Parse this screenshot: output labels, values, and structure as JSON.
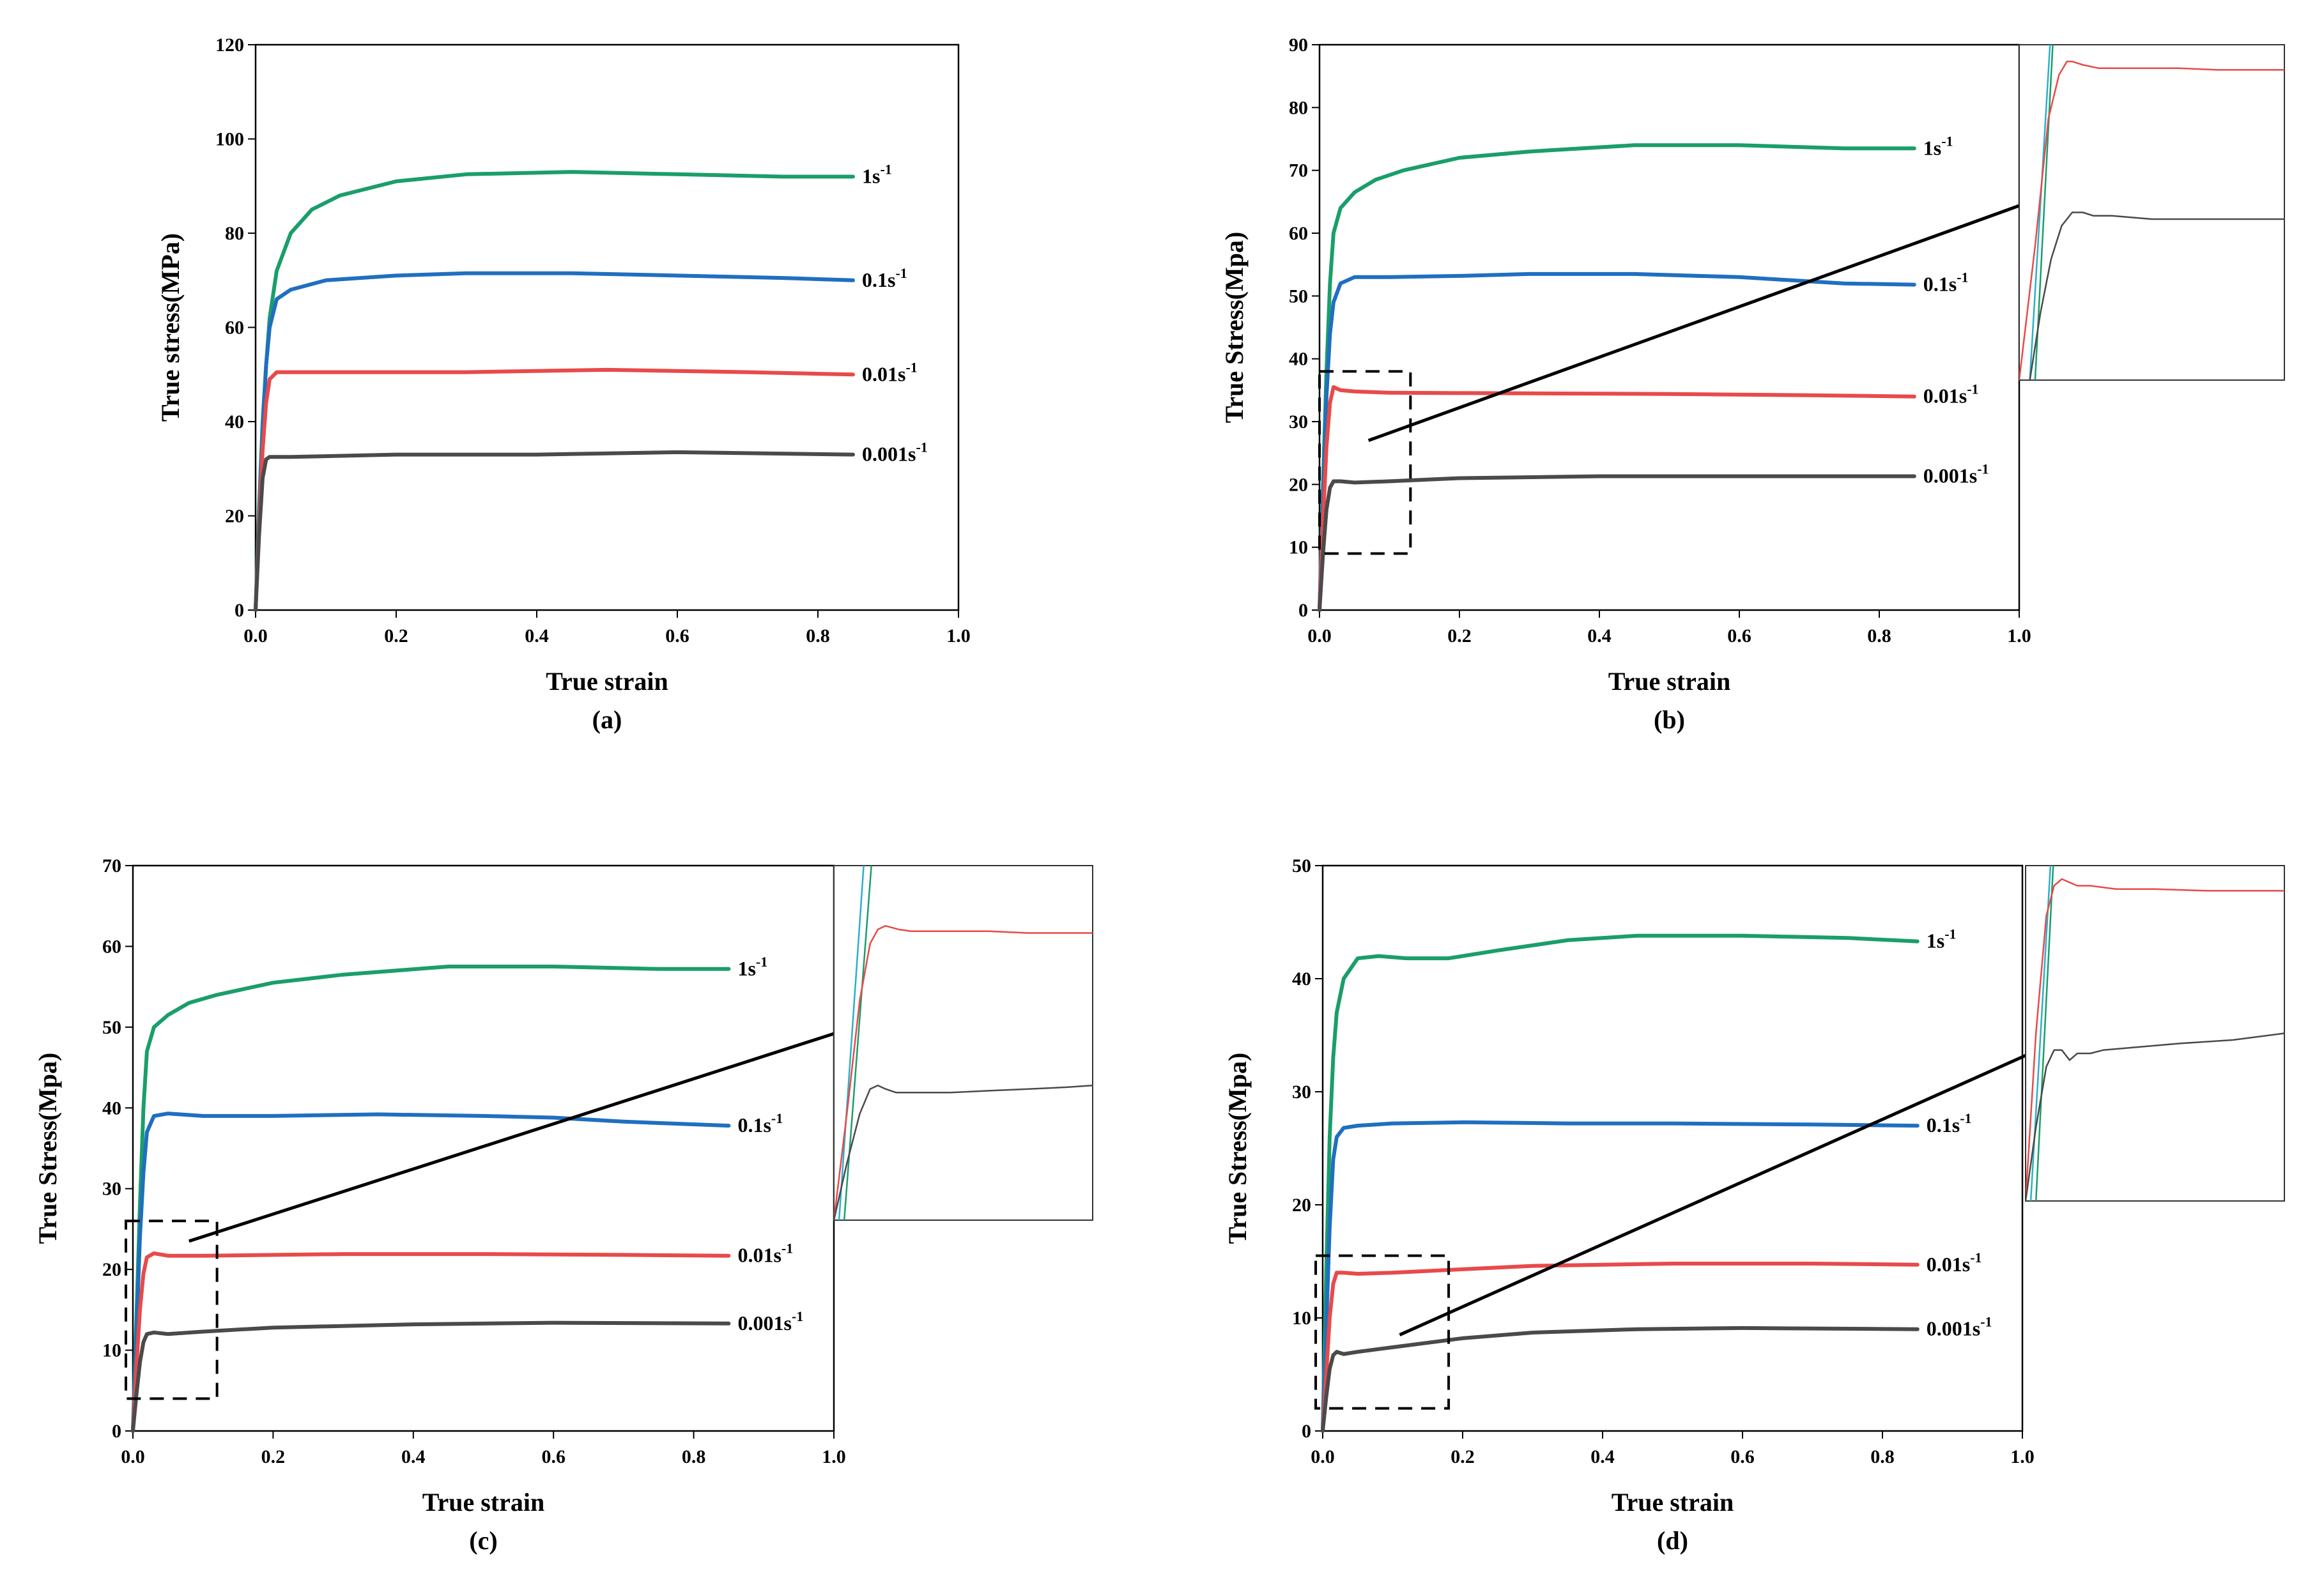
{
  "colors": {
    "1s-1": "#1a9e6a",
    "0.1s-1": "#1f6fc0",
    "0.01s-1": "#e84a4a",
    "0.001s-1": "#4a4a4a",
    "inset_cyan": "#2ab0c8"
  },
  "chart_data": [
    {
      "id": "a",
      "type": "line",
      "caption": "(a)",
      "xlabel": "True strain",
      "ylabel": "True stress(MPa)",
      "xlim": [
        0,
        1.0
      ],
      "ylim": [
        0,
        120
      ],
      "xticks": [
        "0.0",
        "0.2",
        "0.4",
        "0.6",
        "0.8",
        "1.0"
      ],
      "yticks": [
        "0",
        "20",
        "40",
        "60",
        "80",
        "100",
        "120"
      ],
      "series": [
        {
          "name": "1s-1",
          "label": "1s",
          "sup": "-1",
          "x": [
            0,
            0.005,
            0.01,
            0.015,
            0.02,
            0.03,
            0.05,
            0.08,
            0.12,
            0.2,
            0.3,
            0.45,
            0.6,
            0.75,
            0.85
          ],
          "values": [
            0,
            22,
            40,
            52,
            62,
            72,
            80,
            85,
            88,
            91,
            92.5,
            93,
            92.5,
            92,
            92
          ]
        },
        {
          "name": "0.1s-1",
          "label": "0.1s",
          "sup": "-1",
          "x": [
            0,
            0.005,
            0.01,
            0.015,
            0.02,
            0.03,
            0.05,
            0.1,
            0.2,
            0.3,
            0.45,
            0.6,
            0.75,
            0.85
          ],
          "values": [
            0,
            20,
            38,
            52,
            60,
            66,
            68,
            70,
            71,
            71.5,
            71.5,
            71,
            70.5,
            70
          ]
        },
        {
          "name": "0.01s-1",
          "label": "0.01s",
          "sup": "-1",
          "x": [
            0,
            0.005,
            0.01,
            0.015,
            0.02,
            0.03,
            0.05,
            0.1,
            0.3,
            0.5,
            0.7,
            0.85
          ],
          "values": [
            0,
            18,
            34,
            44,
            49,
            50.5,
            50.5,
            50.5,
            50.5,
            51,
            50.5,
            50
          ]
        },
        {
          "name": "0.001s-1",
          "label": "0.001s",
          "sup": "-1",
          "x": [
            0,
            0.005,
            0.01,
            0.015,
            0.02,
            0.03,
            0.05,
            0.2,
            0.4,
            0.6,
            0.85
          ],
          "values": [
            0,
            16,
            28,
            32,
            32.5,
            32.5,
            32.5,
            33,
            33,
            33.5,
            33
          ]
        }
      ]
    },
    {
      "id": "b",
      "type": "line",
      "caption": "(b)",
      "xlabel": "True strain",
      "ylabel": "True Stress(Mpa)",
      "xlim": [
        0,
        1.0
      ],
      "ylim": [
        0,
        90
      ],
      "xticks": [
        "0.0",
        "0.2",
        "0.4",
        "0.6",
        "0.8",
        "1.0"
      ],
      "yticks": [
        "0",
        "10",
        "20",
        "30",
        "40",
        "50",
        "60",
        "70",
        "80",
        "90"
      ],
      "zoom_box": {
        "x": [
          0,
          0.13
        ],
        "y": [
          9,
          38
        ]
      },
      "arrow": {
        "from": [
          0.07,
          27
        ],
        "to": [
          1.14,
          70
        ]
      },
      "series": [
        {
          "name": "1s-1",
          "label": "1s",
          "sup": "-1",
          "x": [
            0,
            0.005,
            0.01,
            0.015,
            0.02,
            0.03,
            0.05,
            0.08,
            0.12,
            0.2,
            0.3,
            0.45,
            0.6,
            0.75,
            0.85
          ],
          "values": [
            0,
            20,
            38,
            52,
            60,
            64,
            66.5,
            68.5,
            70,
            72,
            73,
            74,
            74,
            73.5,
            73.5
          ]
        },
        {
          "name": "0.1s-1",
          "label": "0.1s",
          "sup": "-1",
          "x": [
            0,
            0.005,
            0.01,
            0.015,
            0.02,
            0.03,
            0.05,
            0.1,
            0.2,
            0.3,
            0.45,
            0.6,
            0.75,
            0.85
          ],
          "values": [
            0,
            18,
            34,
            44,
            49,
            52,
            53,
            53,
            53.2,
            53.5,
            53.5,
            53,
            52,
            51.8
          ]
        },
        {
          "name": "0.01s-1",
          "label": "0.01s",
          "sup": "-1",
          "x": [
            0,
            0.005,
            0.01,
            0.015,
            0.02,
            0.03,
            0.05,
            0.1,
            0.3,
            0.5,
            0.7,
            0.85
          ],
          "values": [
            0,
            14,
            26,
            33,
            35.5,
            35,
            34.8,
            34.6,
            34.5,
            34.4,
            34.2,
            34
          ]
        },
        {
          "name": "0.001s-1",
          "label": "0.001s",
          "sup": "-1",
          "x": [
            0,
            0.005,
            0.01,
            0.015,
            0.02,
            0.03,
            0.05,
            0.1,
            0.2,
            0.4,
            0.6,
            0.85
          ],
          "values": [
            0,
            9,
            16,
            19.5,
            20.5,
            20.5,
            20.3,
            20.5,
            21,
            21.3,
            21.3,
            21.3
          ]
        }
      ]
    },
    {
      "id": "c",
      "type": "line",
      "caption": "(c)",
      "xlabel": "True strain",
      "ylabel": "True Stress(Mpa)",
      "xlim": [
        0,
        1.0
      ],
      "ylim": [
        0,
        70
      ],
      "xticks": [
        "0.0",
        "0.2",
        "0.4",
        "0.6",
        "0.8",
        "1.0"
      ],
      "yticks": [
        "0",
        "10",
        "20",
        "30",
        "40",
        "50",
        "60",
        "70"
      ],
      "zoom_box": {
        "x": [
          -0.01,
          0.12
        ],
        "y": [
          4,
          26
        ]
      },
      "arrow": {
        "from": [
          0.08,
          23.5
        ],
        "to": [
          1.19,
          54.5
        ]
      },
      "series": [
        {
          "name": "1s-1",
          "label": "1s",
          "sup": "-1",
          "x": [
            0,
            0.005,
            0.01,
            0.015,
            0.02,
            0.03,
            0.05,
            0.08,
            0.12,
            0.2,
            0.3,
            0.45,
            0.6,
            0.75,
            0.85
          ],
          "values": [
            0,
            14,
            28,
            40,
            47,
            50,
            51.5,
            53,
            54,
            55.5,
            56.5,
            57.5,
            57.5,
            57.2,
            57.2
          ]
        },
        {
          "name": "0.1s-1",
          "label": "0.1s",
          "sup": "-1",
          "x": [
            0,
            0.005,
            0.01,
            0.015,
            0.02,
            0.03,
            0.05,
            0.1,
            0.2,
            0.35,
            0.5,
            0.6,
            0.7,
            0.85
          ],
          "values": [
            0,
            12,
            24,
            32,
            37,
            39,
            39.3,
            39,
            39,
            39.2,
            39,
            38.8,
            38.3,
            37.8
          ]
        },
        {
          "name": "0.01s-1",
          "label": "0.01s",
          "sup": "-1",
          "x": [
            0,
            0.005,
            0.01,
            0.015,
            0.02,
            0.03,
            0.05,
            0.1,
            0.3,
            0.5,
            0.7,
            0.85
          ],
          "values": [
            0,
            8,
            15,
            19.5,
            21.5,
            22,
            21.7,
            21.7,
            21.9,
            21.9,
            21.8,
            21.7
          ]
        },
        {
          "name": "0.001s-1",
          "label": "0.001s",
          "sup": "-1",
          "x": [
            0,
            0.005,
            0.01,
            0.015,
            0.02,
            0.03,
            0.05,
            0.1,
            0.2,
            0.4,
            0.6,
            0.85
          ],
          "values": [
            0,
            4.5,
            8.5,
            11,
            12,
            12.2,
            12,
            12.3,
            12.8,
            13.2,
            13.4,
            13.3
          ]
        }
      ]
    },
    {
      "id": "d",
      "type": "line",
      "caption": "(d)",
      "xlabel": "True strain",
      "ylabel": "True Stress(Mpa)",
      "xlim": [
        0,
        1.0
      ],
      "ylim": [
        0,
        50
      ],
      "xticks": [
        "0.0",
        "0.2",
        "0.4",
        "0.6",
        "0.8",
        "1.0"
      ],
      "yticks": [
        "0",
        "10",
        "20",
        "30",
        "40",
        "50"
      ],
      "zoom_box": {
        "x": [
          -0.01,
          0.18
        ],
        "y": [
          2,
          15.5
        ]
      },
      "arrow": {
        "from": [
          0.11,
          8.5
        ],
        "to": [
          1.16,
          37.5
        ]
      },
      "series": [
        {
          "name": "1s-1",
          "label": "1s",
          "sup": "-1",
          "x": [
            0,
            0.005,
            0.01,
            0.015,
            0.02,
            0.03,
            0.05,
            0.08,
            0.12,
            0.18,
            0.25,
            0.35,
            0.45,
            0.6,
            0.75,
            0.85
          ],
          "values": [
            0,
            14,
            26,
            33,
            37,
            40,
            41.8,
            42,
            41.8,
            41.8,
            42.5,
            43.4,
            43.8,
            43.8,
            43.6,
            43.3
          ]
        },
        {
          "name": "0.1s-1",
          "label": "0.1s",
          "sup": "-1",
          "x": [
            0,
            0.005,
            0.01,
            0.015,
            0.02,
            0.03,
            0.05,
            0.1,
            0.2,
            0.35,
            0.5,
            0.7,
            0.85
          ],
          "values": [
            0,
            9,
            18,
            24,
            26,
            26.8,
            27,
            27.2,
            27.3,
            27.2,
            27.2,
            27.1,
            27
          ]
        },
        {
          "name": "0.01s-1",
          "label": "0.01s",
          "sup": "-1",
          "x": [
            0,
            0.005,
            0.01,
            0.015,
            0.02,
            0.03,
            0.05,
            0.1,
            0.2,
            0.3,
            0.5,
            0.7,
            0.85
          ],
          "values": [
            0,
            5,
            10,
            13,
            14,
            14,
            13.9,
            14,
            14.3,
            14.6,
            14.8,
            14.8,
            14.7
          ]
        },
        {
          "name": "0.001s-1",
          "label": "0.001s",
          "sup": "-1",
          "x": [
            0,
            0.005,
            0.01,
            0.015,
            0.02,
            0.03,
            0.05,
            0.1,
            0.2,
            0.3,
            0.45,
            0.6,
            0.85
          ],
          "values": [
            0,
            3,
            5.5,
            6.7,
            7,
            6.8,
            7,
            7.4,
            8.2,
            8.7,
            9,
            9.1,
            9
          ]
        }
      ]
    }
  ],
  "insets": [
    {
      "for": "b",
      "curves": [
        {
          "name": "1s-1",
          "x": [
            0.06,
            0.13
          ],
          "values": [
            0,
            1.05
          ]
        },
        {
          "name": "cyan",
          "x": [
            0.04,
            0.12
          ],
          "values": [
            0,
            1.05
          ]
        },
        {
          "name": "0.01s-1",
          "x": [
            0.0,
            0.06,
            0.11,
            0.15,
            0.18,
            0.2,
            0.24,
            0.3,
            0.45,
            0.6,
            0.75,
            0.9,
            1.0
          ],
          "values": [
            0,
            0.4,
            0.78,
            0.91,
            0.95,
            0.95,
            0.94,
            0.93,
            0.93,
            0.93,
            0.925,
            0.925,
            0.925
          ]
        },
        {
          "name": "0.001s-1",
          "x": [
            0.04,
            0.08,
            0.12,
            0.16,
            0.2,
            0.24,
            0.28,
            0.35,
            0.5,
            0.7,
            0.9,
            1.0
          ],
          "values": [
            0,
            0.2,
            0.36,
            0.46,
            0.5,
            0.5,
            0.49,
            0.49,
            0.48,
            0.48,
            0.48,
            0.48
          ]
        }
      ]
    },
    {
      "for": "c",
      "curves": [
        {
          "name": "1s-1",
          "x": [
            0.04,
            0.15
          ],
          "values": [
            0,
            1.05
          ]
        },
        {
          "name": "cyan",
          "x": [
            0.02,
            0.12
          ],
          "values": [
            0,
            1.05
          ]
        },
        {
          "name": "0.01s-1",
          "x": [
            0.0,
            0.05,
            0.1,
            0.14,
            0.17,
            0.2,
            0.25,
            0.3,
            0.45,
            0.6,
            0.75,
            0.9,
            1.0
          ],
          "values": [
            0,
            0.3,
            0.62,
            0.78,
            0.82,
            0.83,
            0.82,
            0.815,
            0.815,
            0.815,
            0.81,
            0.81,
            0.81
          ]
        },
        {
          "name": "0.001s-1",
          "x": [
            0.0,
            0.05,
            0.1,
            0.14,
            0.17,
            0.2,
            0.24,
            0.3,
            0.45,
            0.6,
            0.75,
            0.9,
            1.0
          ],
          "values": [
            0,
            0.16,
            0.3,
            0.37,
            0.38,
            0.37,
            0.36,
            0.36,
            0.36,
            0.365,
            0.37,
            0.375,
            0.38
          ]
        }
      ]
    },
    {
      "for": "d",
      "curves": [
        {
          "name": "1s-1",
          "x": [
            0.04,
            0.11
          ],
          "values": [
            0,
            1.05
          ]
        },
        {
          "name": "cyan",
          "x": [
            0.02,
            0.1
          ],
          "values": [
            0,
            1.05
          ]
        },
        {
          "name": "0.01s-1",
          "x": [
            0.0,
            0.04,
            0.08,
            0.11,
            0.14,
            0.17,
            0.2,
            0.25,
            0.35,
            0.5,
            0.7,
            0.85,
            1.0
          ],
          "values": [
            0,
            0.5,
            0.85,
            0.94,
            0.96,
            0.95,
            0.94,
            0.94,
            0.93,
            0.93,
            0.925,
            0.925,
            0.925
          ]
        },
        {
          "name": "0.001s-1",
          "x": [
            0.0,
            0.04,
            0.08,
            0.11,
            0.14,
            0.17,
            0.2,
            0.25,
            0.3,
            0.45,
            0.6,
            0.8,
            1.0
          ],
          "values": [
            0,
            0.22,
            0.4,
            0.45,
            0.45,
            0.42,
            0.44,
            0.44,
            0.45,
            0.46,
            0.47,
            0.48,
            0.5
          ]
        }
      ]
    }
  ]
}
